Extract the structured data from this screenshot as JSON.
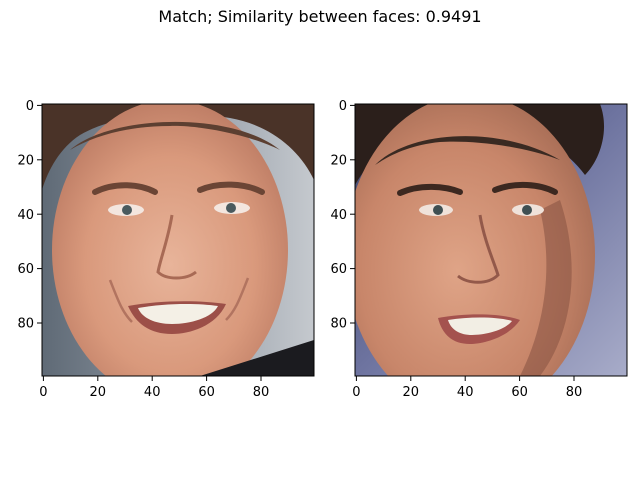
{
  "figure": {
    "title": "Match; Similarity between faces: 0.9491"
  },
  "panels": [
    {
      "name": "left-face",
      "xticks": [
        "0",
        "20",
        "40",
        "60",
        "80"
      ],
      "yticks": [
        "0",
        "20",
        "40",
        "60",
        "80"
      ],
      "image_range": [
        0,
        100
      ]
    },
    {
      "name": "right-face",
      "xticks": [
        "0",
        "20",
        "40",
        "60",
        "80"
      ],
      "yticks": [
        "0",
        "20",
        "40",
        "60",
        "80"
      ],
      "image_range": [
        0,
        100
      ]
    }
  ]
}
